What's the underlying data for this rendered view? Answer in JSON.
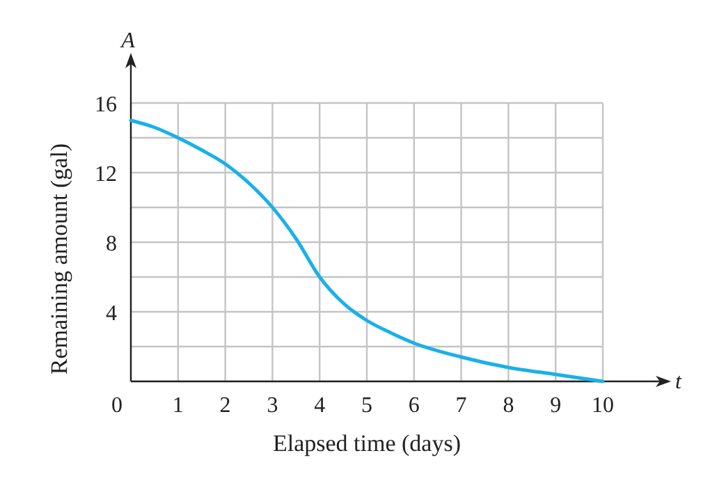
{
  "chart_data": {
    "type": "line",
    "xlabel": "Elapsed time (days)",
    "ylabel": "Remaining amount (gal)",
    "annotations": [
      "A",
      "t"
    ],
    "x": [
      0,
      0.5,
      1,
      1.5,
      2,
      2.5,
      3,
      3.5,
      4,
      4.5,
      5,
      5.5,
      6,
      7,
      8,
      9,
      10
    ],
    "series": [
      {
        "color": "#1ab0ea",
        "values": [
          15,
          14.6,
          14,
          13.3,
          12.5,
          11.4,
          10,
          8.2,
          6,
          4.5,
          3.5,
          2.8,
          2.2,
          1.4,
          0.8,
          0.4,
          0
        ]
      }
    ],
    "xlim": [
      0,
      10
    ],
    "ylim": [
      0,
      16
    ],
    "xticks": [
      0,
      1,
      2,
      3,
      4,
      5,
      6,
      7,
      8,
      9,
      10
    ],
    "yticks": [
      {
        "value": 0,
        "label": null
      },
      {
        "value": 2,
        "label": null
      },
      4,
      {
        "value": 6,
        "label": null
      },
      8,
      {
        "value": 10,
        "label": null
      },
      12,
      {
        "value": 14,
        "label": null
      },
      16
    ],
    "grid": true,
    "marker": "none",
    "line_style": "solid"
  }
}
